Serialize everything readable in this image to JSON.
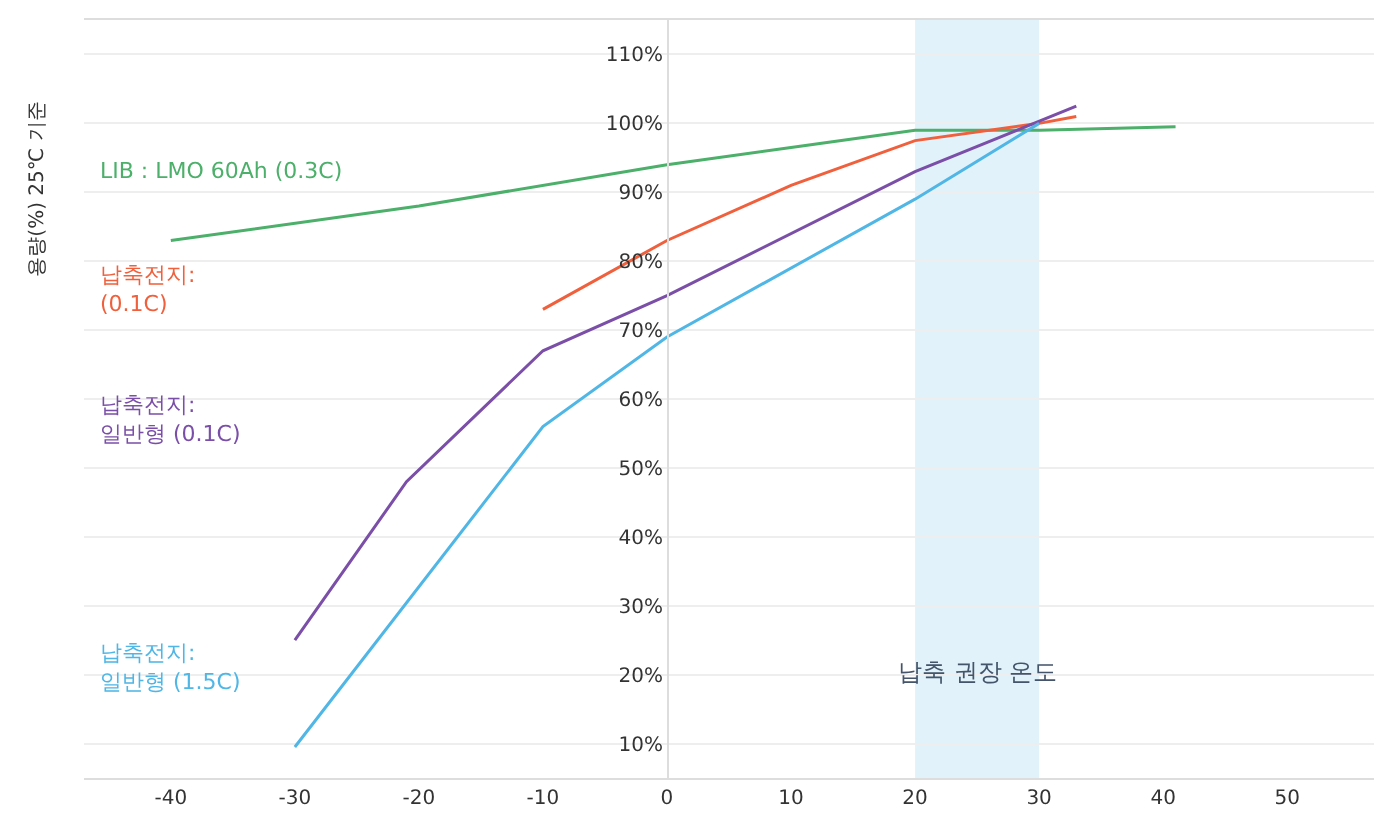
{
  "chart_data": {
    "type": "line",
    "ylabel": "용량(%) 25℃ 기준",
    "xlim": [
      -47,
      57
    ],
    "xticks": [
      -40,
      -30,
      -20,
      -10,
      0,
      10,
      20,
      30,
      40,
      50
    ],
    "ylim": [
      5,
      115
    ],
    "yticks": [
      {
        "value": 10,
        "label": "10%"
      },
      {
        "value": 20,
        "label": "20%"
      },
      {
        "value": 30,
        "label": "30%"
      },
      {
        "value": 40,
        "label": "40%"
      },
      {
        "value": 50,
        "label": "50%"
      },
      {
        "value": 60,
        "label": "60%"
      },
      {
        "value": 70,
        "label": "70%"
      },
      {
        "value": 80,
        "label": "80%"
      },
      {
        "value": 90,
        "label": "90%"
      },
      {
        "value": 100,
        "label": "100%"
      },
      {
        "value": 110,
        "label": "110%"
      }
    ],
    "grid": "y",
    "legend": false,
    "marker": "none",
    "line_style": "solid",
    "series": [
      {
        "name": "LIB : LMO 60Ah (0.3C)",
        "color": "#4caf6a",
        "x": [
          -40,
          -20,
          0,
          10,
          20,
          30,
          41
        ],
        "values": [
          83,
          88,
          94,
          96.5,
          99,
          99,
          99.5
        ]
      },
      {
        "name": "납축전지:\n(0.1C)",
        "color": "#f0603c",
        "x": [
          -10,
          0,
          10,
          20,
          30,
          33
        ],
        "values": [
          73,
          83,
          91,
          97.5,
          100,
          101
        ]
      },
      {
        "name": "납축전지:\n일반형 (0.1C)",
        "color": "#7b4fa8",
        "x": [
          -30,
          -21,
          -10,
          0,
          20,
          33
        ],
        "values": [
          25,
          48,
          67,
          75,
          93,
          102.5
        ]
      },
      {
        "name": "납축전지:\n일반형 (1.5C)",
        "color": "#4fb6e6",
        "x": [
          -30,
          -10,
          0,
          20,
          30
        ],
        "values": [
          9.5,
          56,
          69,
          89,
          100
        ]
      }
    ],
    "bands": [
      {
        "axis": "x",
        "from": 20,
        "to": 30,
        "label": "납축 권장 온도",
        "color": "#d6ecf8"
      }
    ]
  }
}
